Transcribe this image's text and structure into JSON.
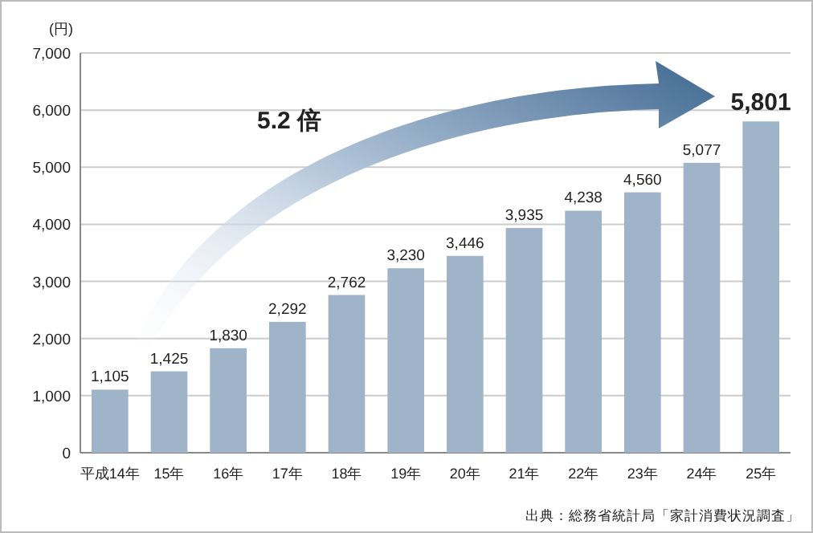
{
  "chart_data": {
    "type": "bar",
    "ylabel": "(円)",
    "categories": [
      "平成14年",
      "15年",
      "16年",
      "17年",
      "18年",
      "19年",
      "20年",
      "21年",
      "22年",
      "23年",
      "24年",
      "25年"
    ],
    "values": [
      1105,
      1425,
      1830,
      2292,
      2762,
      3230,
      3446,
      3935,
      4238,
      4560,
      5077,
      5801
    ],
    "color": "#9fb4c9",
    "value_labels": [
      "1,105",
      "1,425",
      "1,830",
      "2,292",
      "2,762",
      "3,230",
      "3,446",
      "3,935",
      "4,238",
      "4,560",
      "5,077",
      "5,801"
    ],
    "ylim": [
      0,
      7000
    ],
    "yticks": [
      0,
      {
        "value": 1000,
        "label": "1,000"
      },
      {
        "value": 2000,
        "label": "2,000"
      },
      {
        "value": 3000,
        "label": "3,000"
      },
      {
        "value": 4000,
        "label": "4,000"
      },
      {
        "value": 5000,
        "label": "5,000"
      },
      {
        "value": 6000,
        "label": "6,000"
      },
      {
        "value": 7000,
        "label": "7,000"
      }
    ],
    "grid": "y",
    "annotations": [
      "5.2 倍",
      "出典：総務省統計局「家計消費状況調査」"
    ]
  }
}
